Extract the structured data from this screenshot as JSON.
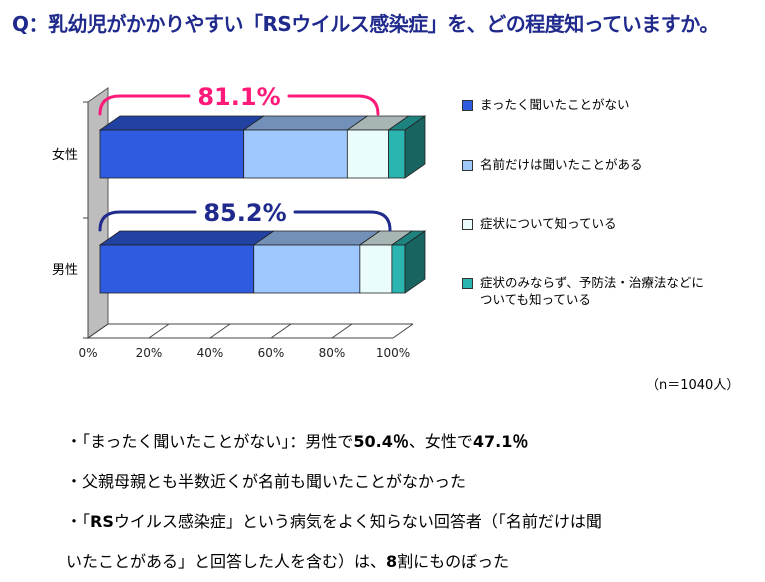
{
  "title": "Q：乳幼児がかかりやすい「RSウイルス感染症」を、どの程度知っていますか。",
  "chart_data": {
    "type": "bar",
    "orientation": "horizontal",
    "stacked": true,
    "categories": [
      "女性",
      "男性"
    ],
    "series": [
      {
        "name": "まったく聞いたことがない",
        "values": [
          47.1,
          50.4
        ]
      },
      {
        "name": "名前だけは聞いたことがある",
        "values": [
          34.0,
          34.8
        ]
      },
      {
        "name": "症状について知っている",
        "values": [
          13.5,
          10.5
        ]
      },
      {
        "name": "症状のみならず、予防法・治療法などについても知っている",
        "values": [
          5.4,
          4.3
        ]
      }
    ],
    "annotations": [
      {
        "category": "女性",
        "label": "81.1%"
      },
      {
        "category": "男性",
        "label": "85.2%"
      }
    ],
    "xticks": [
      "0%",
      "20%",
      "40%",
      "60%",
      "80%",
      "100%"
    ],
    "xlim": [
      0,
      100
    ]
  },
  "colors": {
    "title": "#1f2a8c",
    "series": [
      "#2f5be0",
      "#9ec8ff",
      "#eafcfc",
      "#2ab5b0"
    ],
    "annotation_female": "#ff1a7a",
    "annotation_male": "#1f2a8c",
    "wall": "#bdbdbd"
  },
  "legend": [
    "まったく聞いたことがない",
    "名前だけは聞いたことがある",
    "症状について知っている",
    "症状のみならず、予防法・治療法などについても知っている"
  ],
  "sample_size": "（n＝1040人）",
  "bullets": {
    "b1": {
      "prefix": "・「まったく聞いたことがない」：男性で",
      "v1": "50.4％",
      "mid": "、女性で",
      "v2": "47.1％"
    },
    "b2": {
      "text": "・父親母親とも半数近くが名前も聞いたことがなかった"
    },
    "b3": {
      "prefix": "・「",
      "rs": "RS",
      "rest1": "ウイルス感染症」という病気をよく知らない回答者（「名前だけは聞",
      "line2": "いたことがある」と回答した人を含む）は、",
      "v": "8",
      "suffix": "割にものぼった"
    }
  }
}
